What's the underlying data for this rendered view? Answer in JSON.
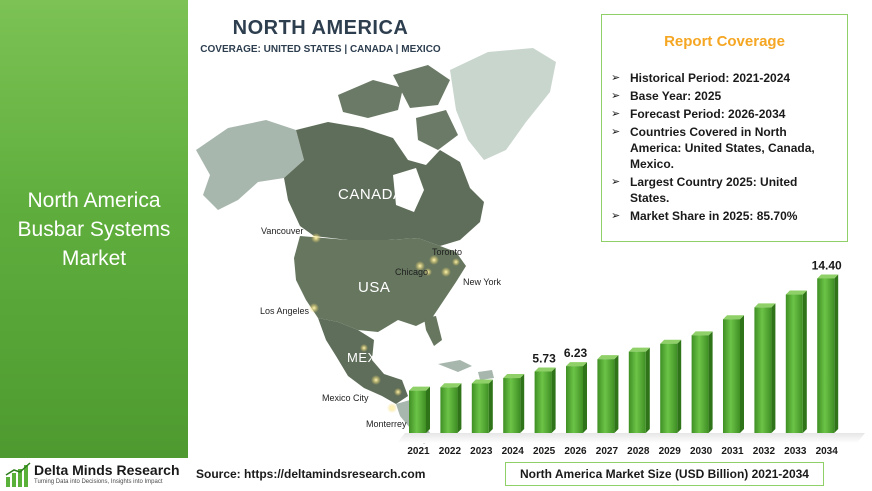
{
  "left_panel": {
    "title": "North America Busbar Systems Market"
  },
  "logo": {
    "name": "Delta Minds Research",
    "tagline": "Turning Data into Decisions, Insights into Impact"
  },
  "map": {
    "title": "NORTH AMERICA",
    "coverage": "COVERAGE: UNITED STATES | CANADA | MEXICO",
    "countries": {
      "canada": "CANADA",
      "usa": "USA",
      "mexico": "MEXICO"
    },
    "cities": {
      "vancouver": "Vancouver",
      "toronto": "Toronto",
      "chicago": "Chicago",
      "new_york": "New York",
      "los_angeles": "Los Angeles",
      "mexico_city": "Mexico City",
      "monterrey": "Monterrey"
    },
    "colors": {
      "land": "#5f6e5a",
      "land_light": "#c9d6cd",
      "sea": "#ffffff"
    }
  },
  "report_coverage": {
    "title": "Report Coverage",
    "items": [
      "Historical Period: 2021-2024",
      "Base Year: 2025",
      "Forecast Period: 2026-2034",
      "Countries Covered in North America: United States, Canada, Mexico.",
      "Largest Country 2025: United States.",
      "Market Share in 2025: 85.70%"
    ]
  },
  "chart_data": {
    "type": "bar",
    "title": "North America Market Size (USD Billion) 2021-2034",
    "categories": [
      "2021",
      "2022",
      "2023",
      "2024",
      "2025",
      "2026",
      "2027",
      "2028",
      "2029",
      "2030",
      "2031",
      "2032",
      "2033",
      "2034"
    ],
    "values": [
      3.95,
      4.26,
      4.61,
      5.12,
      5.73,
      6.23,
      6.88,
      7.58,
      8.32,
      9.1,
      10.6,
      11.7,
      12.9,
      14.4
    ],
    "data_labels": {
      "2025": "5.73",
      "2026": "6.23",
      "2034": "14.40"
    },
    "ylim": [
      0,
      15
    ],
    "grid": false,
    "bar_color": "#5ab13a"
  },
  "footer": {
    "source": "Source: https://deltamindsresearch.com",
    "unit_label": "North America Market Size (USD Billion) 2021-2034"
  }
}
